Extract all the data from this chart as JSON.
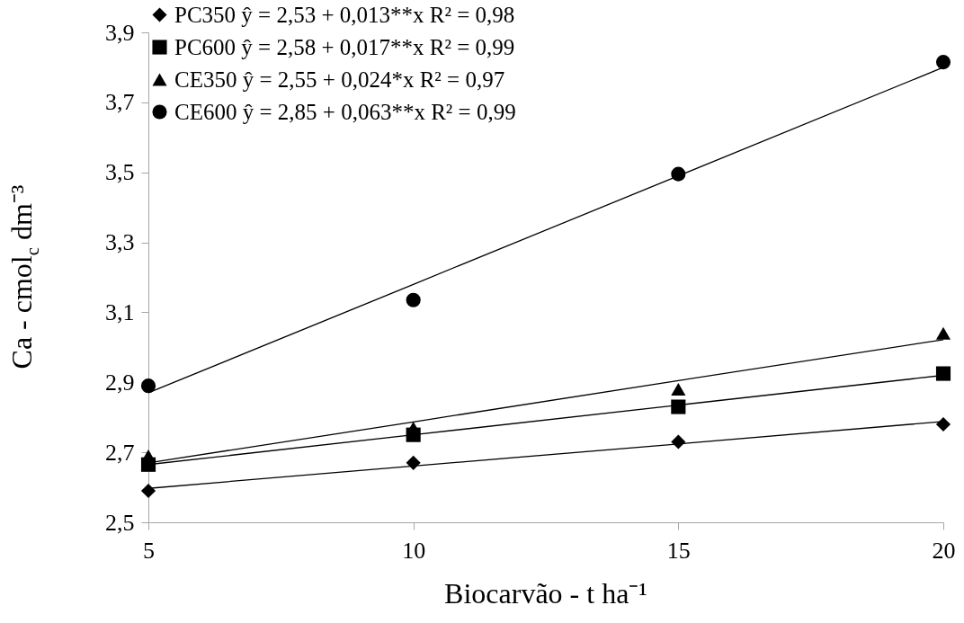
{
  "chart_data": {
    "type": "scatter",
    "xlabel": "Biocarvão - t ha⁻¹",
    "ylabel": "Ca - cmol$_{c}$ dm⁻³",
    "x": [
      5,
      10,
      15,
      20
    ],
    "series": [
      {
        "name": "PC350   ŷ = 2,53 + 0,013**x   R² = 0,98",
        "color": "#000000",
        "marker": "diamond",
        "values": [
          2.59,
          2.67,
          2.73,
          2.78
        ]
      },
      {
        "name": "PC600   ŷ = 2,58 + 0,017**x   R² = 0,99",
        "color": "#000000",
        "marker": "square",
        "values": [
          2.665,
          2.75,
          2.83,
          2.925
        ]
      },
      {
        "name": "CE350   ŷ = 2,55 + 0,024*x      R² = 0,97",
        "color": "#000000",
        "marker": "triangle",
        "values": [
          2.69,
          2.77,
          2.88,
          3.04
        ]
      },
      {
        "name": "CE600   ŷ = 2,85 + 0,063**x   R² = 0,99",
        "color": "#000000",
        "marker": "circle",
        "values": [
          2.89,
          3.135,
          3.495,
          3.815
        ]
      },
      {
        "type": "line",
        "color": "#000000",
        "marker": "none",
        "values": [
          2.597,
          2.661,
          2.724,
          2.788
        ]
      },
      {
        "type": "line",
        "color": "#000000",
        "marker": "none",
        "values": [
          2.665,
          2.75,
          2.835,
          2.92
        ]
      },
      {
        "type": "line",
        "color": "#000000",
        "marker": "none",
        "values": [
          2.67,
          2.787,
          2.905,
          3.022
        ]
      },
      {
        "type": "line",
        "color": "#000000",
        "marker": "none",
        "values": [
          2.87,
          3.18,
          3.49,
          3.8
        ]
      }
    ],
    "xlim": [
      5,
      20
    ],
    "xticks": [
      5,
      10,
      15,
      20
    ],
    "ylim": [
      2.5,
      3.9
    ],
    "yticks": [
      {
        "value": 2.5,
        "label": "2,5"
      },
      {
        "value": 2.7,
        "label": "2,7"
      },
      {
        "value": 2.9,
        "label": "2,9"
      },
      {
        "value": 3.1,
        "label": "3,1"
      },
      {
        "value": 3.3,
        "label": "3,3"
      },
      {
        "value": 3.5,
        "label": "3,5"
      },
      {
        "value": 3.7,
        "label": "3,7"
      },
      {
        "value": 3.9,
        "label": "3,9"
      }
    ],
    "grid": false,
    "legend": "top left"
  }
}
